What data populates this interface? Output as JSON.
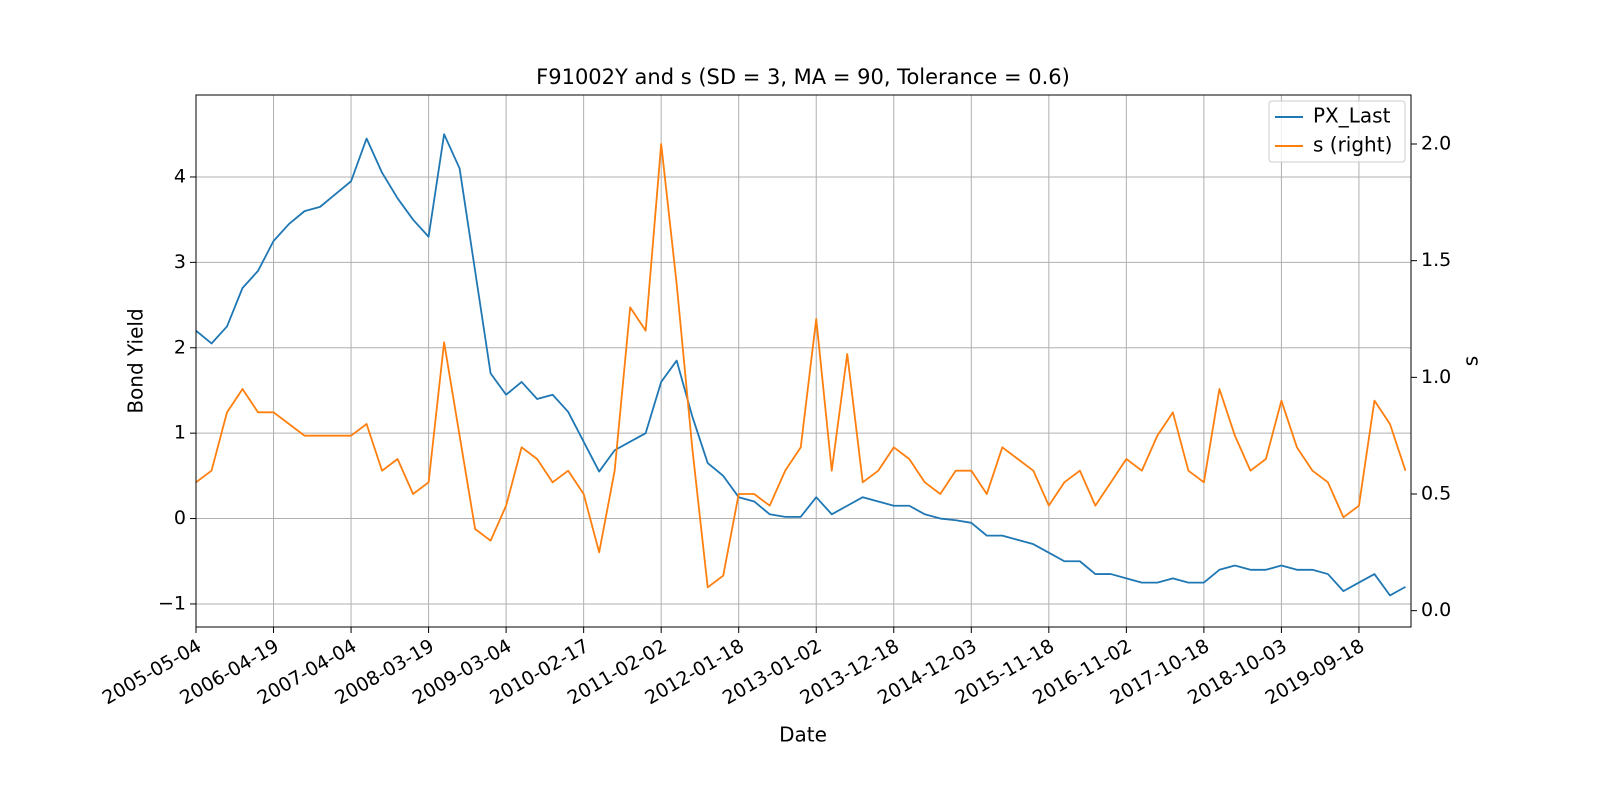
{
  "chart_data": {
    "type": "line",
    "title": "F91002Y and s (SD = 3, MA = 90, Tolerance  = 0.6)",
    "xlabel": "Date",
    "ylabel": "Bond Yield",
    "y2label": "s",
    "x": [
      "2005-05-04",
      "2005-07-13",
      "2005-09-21",
      "2005-11-30",
      "2006-02-08",
      "2006-04-19",
      "2006-06-28",
      "2006-09-06",
      "2006-11-15",
      "2007-01-24",
      "2007-04-04",
      "2007-06-13",
      "2007-08-22",
      "2007-10-31",
      "2008-01-09",
      "2008-03-19",
      "2008-05-28",
      "2008-08-06",
      "2008-10-15",
      "2008-12-24",
      "2009-03-04",
      "2009-05-13",
      "2009-07-22",
      "2009-09-30",
      "2009-12-09",
      "2010-02-17",
      "2010-04-28",
      "2010-07-07",
      "2010-09-15",
      "2010-11-24",
      "2011-02-02",
      "2011-04-13",
      "2011-06-22",
      "2011-08-31",
      "2011-11-09",
      "2012-01-18",
      "2012-03-28",
      "2012-06-06",
      "2012-08-15",
      "2012-10-24",
      "2013-01-02",
      "2013-03-13",
      "2013-05-22",
      "2013-07-31",
      "2013-10-09",
      "2013-12-18",
      "2014-02-26",
      "2014-05-07",
      "2014-07-16",
      "2014-09-24",
      "2014-12-03",
      "2015-02-11",
      "2015-04-22",
      "2015-07-01",
      "2015-09-09",
      "2015-11-18",
      "2016-01-27",
      "2016-04-06",
      "2016-06-15",
      "2016-08-24",
      "2016-11-02",
      "2017-01-11",
      "2017-03-22",
      "2017-05-31",
      "2017-08-09",
      "2017-10-18",
      "2017-12-27",
      "2018-03-07",
      "2018-05-16",
      "2018-07-25",
      "2018-10-03",
      "2018-12-12",
      "2019-02-20",
      "2019-05-01",
      "2019-07-10",
      "2019-09-18",
      "2019-11-27",
      "2020-02-05",
      "2020-04-15"
    ],
    "series": [
      {
        "name": "PX_Last",
        "color": "#1f77b4",
        "values": [
          2.2,
          2.05,
          2.25,
          2.7,
          2.9,
          3.25,
          3.45,
          3.6,
          3.65,
          3.8,
          3.95,
          4.45,
          4.05,
          3.75,
          3.5,
          3.3,
          4.5,
          4.1,
          2.9,
          1.7,
          1.45,
          1.6,
          1.4,
          1.45,
          1.25,
          0.9,
          0.55,
          0.8,
          0.9,
          1.0,
          1.6,
          1.85,
          1.2,
          0.65,
          0.5,
          0.25,
          0.2,
          0.05,
          0.02,
          0.02,
          0.25,
          0.05,
          0.15,
          0.25,
          0.2,
          0.15,
          0.15,
          0.05,
          0.0,
          -0.02,
          -0.05,
          -0.2,
          -0.2,
          -0.25,
          -0.3,
          -0.4,
          -0.5,
          -0.5,
          -0.65,
          -0.65,
          -0.7,
          -0.75,
          -0.75,
          -0.7,
          -0.75,
          -0.75,
          -0.6,
          -0.55,
          -0.6,
          -0.6,
          -0.55,
          -0.6,
          -0.6,
          -0.65,
          -0.85,
          -0.75,
          -0.65,
          -0.9,
          -0.8
        ]
      },
      {
        "name": "s (right)",
        "color": "#ff7f0e",
        "axis": "y2",
        "values": [
          0.55,
          0.6,
          0.85,
          0.95,
          0.85,
          0.85,
          0.8,
          0.75,
          0.75,
          0.75,
          0.75,
          0.8,
          0.6,
          0.65,
          0.5,
          0.55,
          1.15,
          0.75,
          0.35,
          0.3,
          0.45,
          0.7,
          0.65,
          0.55,
          0.6,
          0.5,
          0.25,
          0.6,
          1.3,
          1.2,
          2.0,
          1.4,
          0.7,
          0.1,
          0.15,
          0.5,
          0.5,
          0.45,
          0.6,
          0.7,
          1.25,
          0.6,
          1.1,
          0.55,
          0.6,
          0.7,
          0.65,
          0.55,
          0.5,
          0.6,
          0.6,
          0.5,
          0.7,
          0.65,
          0.6,
          0.45,
          0.55,
          0.6,
          0.45,
          0.55,
          0.65,
          0.6,
          0.75,
          0.85,
          0.6,
          0.55,
          0.95,
          0.75,
          0.6,
          0.65,
          0.9,
          0.7,
          0.6,
          0.55,
          0.4,
          0.45,
          0.9,
          0.8,
          0.6
        ]
      }
    ],
    "xlim": [
      "2005-05-04",
      "2020-05-10"
    ],
    "xticks": [
      "2005-05-04",
      "2006-04-19",
      "2007-04-04",
      "2008-03-19",
      "2009-03-04",
      "2010-02-17",
      "2011-02-02",
      "2012-01-18",
      "2013-01-02",
      "2013-12-18",
      "2014-12-03",
      "2015-11-18",
      "2016-11-02",
      "2017-10-18",
      "2018-10-03",
      "2019-09-18"
    ],
    "ylim": [
      -1.27,
      4.96
    ],
    "yticks": [
      {
        "value": -1,
        "label": "−1"
      },
      0,
      1,
      2,
      3,
      4
    ],
    "y2lim": [
      -0.07,
      2.21
    ],
    "y2ticks": [
      {
        "value": 0,
        "label": "0.0"
      },
      0.5,
      {
        "value": 1,
        "label": "1.0"
      },
      1.5,
      {
        "value": 2,
        "label": "2.0"
      }
    ],
    "grid": true,
    "legend": "upper right"
  }
}
